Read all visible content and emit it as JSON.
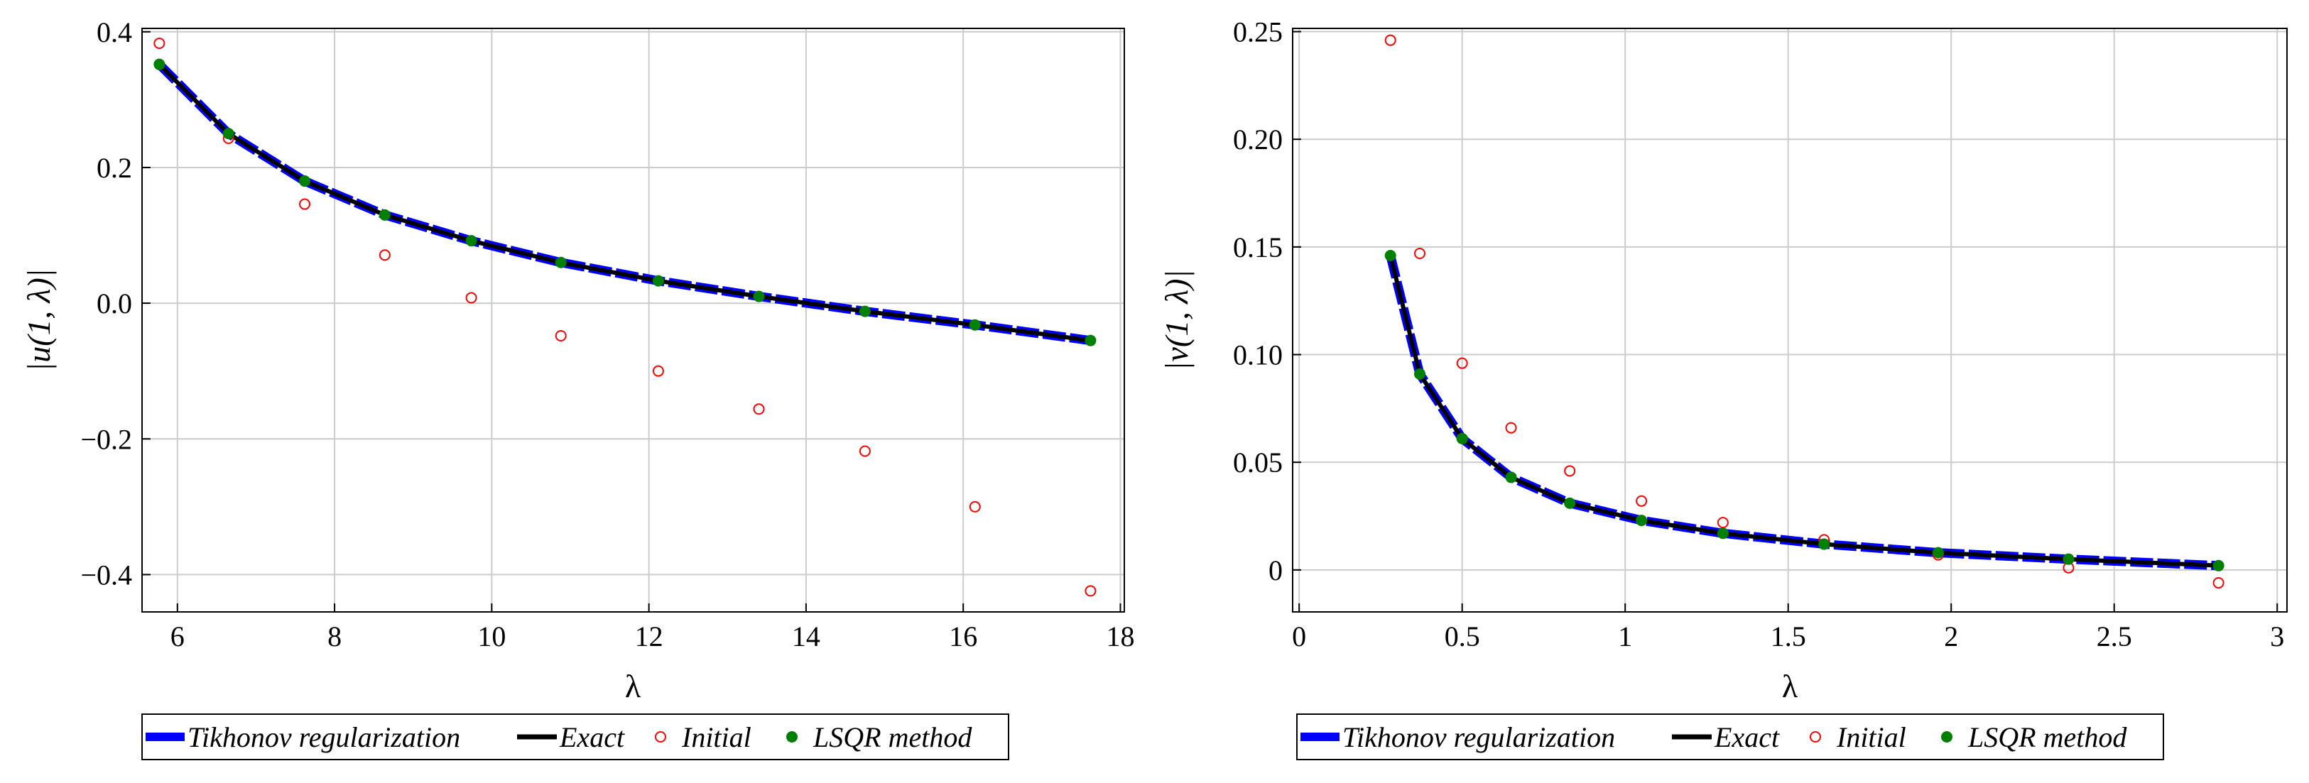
{
  "colors": {
    "tikhonov": "#0000ff",
    "exact": "#000000",
    "initial": "#ff0000",
    "lsqr": "#008000",
    "grid": "#cccccc",
    "frame": "#000000",
    "background": "#ffffff"
  },
  "legend": {
    "tikhonov": "Tikhonov regularization",
    "exact": "Exact",
    "initial": "Initial",
    "lsqr": "LSQR method"
  },
  "chart_data": [
    {
      "type": "line",
      "xlabel": "λ",
      "ylabel": "|u(1, λ)|",
      "xlim": [
        5.55,
        18.05
      ],
      "ylim": [
        -0.455,
        0.405
      ],
      "grid": true,
      "legend_position": "bottom",
      "x_ticks": [
        6,
        8,
        10,
        12,
        14,
        16,
        18
      ],
      "x_tick_labels": [
        "6",
        "8",
        "10",
        "12",
        "14",
        "16",
        "18"
      ],
      "y_ticks": [
        -0.4,
        -0.2,
        0.0,
        0.2,
        0.4
      ],
      "y_tick_labels": [
        "−0.4",
        "−0.2",
        "0.0",
        "0.2",
        "0.4"
      ],
      "x": [
        5.77,
        6.65,
        7.62,
        8.64,
        9.74,
        10.88,
        12.12,
        13.4,
        14.75,
        16.15,
        17.62
      ],
      "series": [
        {
          "name": "Tikhonov regularization",
          "style": "dashed-thick",
          "values": [
            0.352,
            0.25,
            0.18,
            0.13,
            0.092,
            0.06,
            0.033,
            0.01,
            -0.012,
            -0.032,
            -0.055
          ]
        },
        {
          "name": "Exact",
          "style": "solid",
          "values": [
            0.352,
            0.25,
            0.18,
            0.13,
            0.092,
            0.06,
            0.033,
            0.01,
            -0.012,
            -0.032,
            -0.055
          ]
        },
        {
          "name": "Initial",
          "style": "open-circle",
          "values": [
            0.383,
            0.243,
            0.146,
            0.071,
            0.008,
            -0.048,
            -0.1,
            -0.156,
            -0.218,
            -0.3,
            -0.424
          ]
        },
        {
          "name": "LSQR method",
          "style": "filled-circle",
          "values": [
            0.352,
            0.25,
            0.18,
            0.13,
            0.092,
            0.06,
            0.033,
            0.01,
            -0.012,
            -0.032,
            -0.055
          ]
        }
      ]
    },
    {
      "type": "line",
      "xlabel": "λ",
      "ylabel": "|v(1, λ)|",
      "xlim": [
        -0.02,
        3.03
      ],
      "ylim": [
        -0.0195,
        0.2515
      ],
      "grid": true,
      "legend_position": "bottom",
      "x_ticks": [
        0,
        0.5,
        1,
        1.5,
        2,
        2.5,
        3
      ],
      "x_tick_labels": [
        "0",
        "0.5",
        "1",
        "1.5",
        "2",
        "2.5",
        "3"
      ],
      "y_ticks": [
        0,
        0.05,
        0.1,
        0.15,
        0.2,
        0.25
      ],
      "y_tick_labels": [
        "0",
        "0.05",
        "0.10",
        "0.15",
        "0.20",
        "0.25"
      ],
      "x": [
        0.28,
        0.37,
        0.5,
        0.65,
        0.83,
        1.05,
        1.3,
        1.61,
        1.96,
        2.36,
        2.82
      ],
      "series": [
        {
          "name": "Tikhonov regularization",
          "style": "dashed-thick",
          "values": [
            0.146,
            0.091,
            0.061,
            0.043,
            0.031,
            0.023,
            0.017,
            0.012,
            0.008,
            0.005,
            0.002
          ]
        },
        {
          "name": "Exact",
          "style": "solid",
          "values": [
            0.146,
            0.091,
            0.061,
            0.043,
            0.031,
            0.023,
            0.017,
            0.012,
            0.008,
            0.005,
            0.002
          ]
        },
        {
          "name": "Initial",
          "style": "open-circle",
          "values": [
            0.246,
            0.147,
            0.096,
            0.066,
            0.046,
            0.032,
            0.022,
            0.014,
            0.007,
            0.001,
            -0.006
          ]
        },
        {
          "name": "LSQR method",
          "style": "filled-circle",
          "values": [
            0.146,
            0.091,
            0.061,
            0.043,
            0.031,
            0.023,
            0.017,
            0.012,
            0.008,
            0.005,
            0.002
          ]
        }
      ]
    }
  ]
}
